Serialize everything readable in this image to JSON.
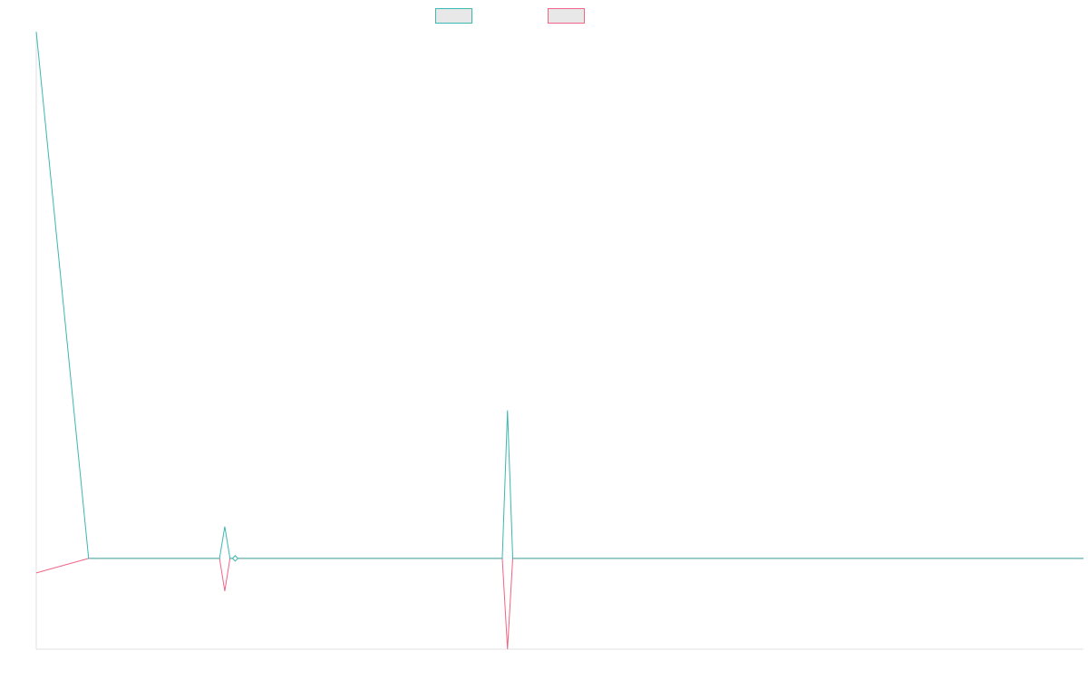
{
  "colors": {
    "background": "#ffffff",
    "axis": "#e0e0e0",
    "legend_fill": "#e8e8e8"
  },
  "chart_data": {
    "type": "line",
    "title": "",
    "xlabel": "",
    "ylabel": "",
    "grid": false,
    "legend_placement": "top-center",
    "x": [
      0,
      0.05,
      0.17,
      0.175,
      0.18,
      0.185,
      0.19,
      0.195,
      0.2,
      0.44,
      0.445,
      0.45,
      0.455,
      0.46,
      1.0
    ],
    "xlim": [
      0,
      1.0
    ],
    "ylim": [
      -100,
      580
    ],
    "series": [
      {
        "legend_label": "",
        "color": "#3bb8b0",
        "values": [
          580,
          0,
          0,
          0,
          35,
          0,
          0,
          0,
          0,
          0,
          0,
          163,
          0,
          0,
          0
        ]
      },
      {
        "legend_label": "",
        "color": "#f06486",
        "values": [
          -16,
          0,
          0,
          0,
          -36,
          0,
          0,
          0,
          0,
          0,
          0,
          -100,
          0,
          0,
          0
        ]
      }
    ],
    "hollow_markers": [
      {
        "series": 0,
        "x": 0.19,
        "y": 0
      }
    ]
  }
}
